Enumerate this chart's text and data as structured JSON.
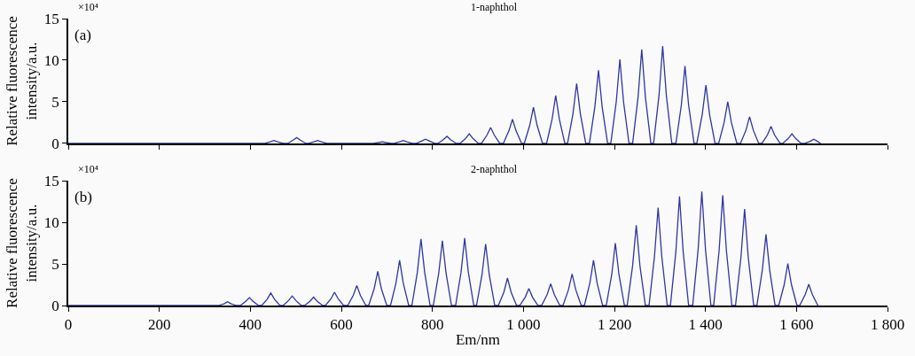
{
  "chart_data": [
    {
      "type": "line",
      "title": "1-naphthol",
      "ylabel": "Relative fluorescence\nintensity/a.u.",
      "annotations": [
        "×10⁴",
        "(a)"
      ],
      "tick_labels": "y",
      "xlim": [
        0,
        1800
      ],
      "xticks": [
        0,
        200,
        400,
        600,
        800,
        1000,
        1200,
        1400,
        1600,
        1800
      ],
      "ylim": [
        0,
        15
      ],
      "yticks": [
        0,
        5,
        10,
        15
      ],
      "series": [
        {
          "color": "#2e36a0",
          "x": [
            0,
            432,
            444,
            452,
            460,
            472,
            482,
            494,
            502,
            510,
            522,
            528,
            540,
            548,
            556,
            568,
            670,
            682,
            690,
            698,
            710,
            716,
            728,
            736,
            744,
            756,
            765,
            777,
            785,
            793,
            805,
            812,
            824,
            832,
            840,
            852,
            861,
            873,
            881,
            889,
            901,
            908,
            920,
            928,
            936,
            948,
            956,
            968,
            976,
            984,
            996,
            1002,
            1014,
            1022,
            1030,
            1042,
            1051,
            1063,
            1071,
            1079,
            1091,
            1097,
            1109,
            1117,
            1125,
            1137,
            1145,
            1157,
            1165,
            1173,
            1185,
            1192,
            1204,
            1212,
            1220,
            1232,
            1240,
            1252,
            1260,
            1268,
            1280,
            1286,
            1298,
            1306,
            1314,
            1326,
            1335,
            1347,
            1355,
            1363,
            1375,
            1381,
            1393,
            1401,
            1409,
            1421,
            1429,
            1441,
            1449,
            1457,
            1469,
            1477,
            1489,
            1497,
            1505,
            1517,
            1524,
            1536,
            1544,
            1552,
            1564,
            1570,
            1582,
            1590,
            1598,
            1610,
            1618,
            1630,
            1638,
            1646,
            1653
          ],
          "values": [
            0,
            0,
            0.2,
            0.35,
            0.2,
            0,
            0,
            0.4,
            0.7,
            0.4,
            0,
            0,
            0.2,
            0.35,
            0.2,
            0,
            0,
            0.1,
            0.2,
            0.1,
            0,
            0,
            0.2,
            0.35,
            0.2,
            0,
            0,
            0.3,
            0.5,
            0.3,
            0,
            0,
            0.45,
            0.85,
            0.45,
            0,
            0,
            0.6,
            1.15,
            0.6,
            0,
            0,
            1,
            1.9,
            1,
            0,
            0,
            1.5,
            2.9,
            1.5,
            0,
            0,
            2.2,
            4.35,
            2.2,
            0,
            0,
            2.9,
            5.75,
            2.9,
            0,
            0,
            3.6,
            7.2,
            3.6,
            0,
            0,
            4.4,
            8.8,
            4.4,
            0,
            0,
            5,
            10.1,
            5,
            0,
            0,
            5.6,
            11.3,
            5.6,
            0,
            0,
            5.8,
            11.7,
            5.8,
            0,
            0,
            4.6,
            9.3,
            4.6,
            0,
            0,
            3.5,
            7,
            3.5,
            0,
            0,
            2.5,
            5,
            2.5,
            0,
            0,
            1.6,
            3.2,
            1.6,
            0,
            0,
            1,
            2.05,
            1,
            0,
            0,
            0.6,
            1.15,
            0.6,
            0,
            0,
            0.25,
            0.5,
            0.25,
            0
          ]
        }
      ]
    },
    {
      "type": "line",
      "title": "2-naphthol",
      "xlabel": "Em/nm",
      "ylabel": "Relative fluorescence\nintensity/a.u.",
      "annotations": [
        "×10⁴",
        "(b)"
      ],
      "xlim": [
        0,
        1800
      ],
      "xticks": [
        0,
        200,
        400,
        600,
        800,
        {
          "value": 1000,
          "label": "1 000"
        },
        {
          "value": 1200,
          "label": "1 200"
        },
        {
          "value": 1400,
          "label": "1 400"
        },
        {
          "value": 1600,
          "label": "1 600"
        },
        {
          "value": 1800,
          "label": "1 800"
        }
      ],
      "ylim": [
        0,
        15
      ],
      "yticks": [
        0,
        5,
        10,
        15
      ],
      "series": [
        {
          "color": "#2e36a0",
          "x": [
            0,
            330,
            342,
            350,
            358,
            370,
            378,
            390,
            398,
            406,
            418,
            425,
            437,
            445,
            453,
            465,
            472,
            484,
            492,
            500,
            512,
            519,
            531,
            539,
            547,
            559,
            565,
            577,
            585,
            593,
            605,
            614,
            626,
            634,
            642,
            654,
            660,
            672,
            680,
            688,
            700,
            708,
            720,
            728,
            736,
            748,
            755,
            767,
            775,
            783,
            795,
            802,
            814,
            822,
            830,
            842,
            851,
            863,
            871,
            879,
            891,
            897,
            909,
            917,
            925,
            937,
            945,
            957,
            965,
            973,
            985,
            992,
            1004,
            1012,
            1020,
            1032,
            1040,
            1052,
            1060,
            1068,
            1080,
            1087,
            1099,
            1107,
            1115,
            1127,
            1134,
            1146,
            1154,
            1162,
            1174,
            1182,
            1194,
            1202,
            1210,
            1222,
            1228,
            1240,
            1248,
            1256,
            1268,
            1276,
            1288,
            1296,
            1304,
            1316,
            1323,
            1335,
            1343,
            1351,
            1363,
            1372,
            1384,
            1392,
            1400,
            1412,
            1418,
            1430,
            1438,
            1446,
            1458,
            1466,
            1478,
            1486,
            1494,
            1506,
            1513,
            1525,
            1533,
            1541,
            1553,
            1561,
            1573,
            1581,
            1589,
            1601,
            1607,
            1619,
            1627,
            1635,
            1647
          ],
          "values": [
            0,
            0,
            0.2,
            0.45,
            0.2,
            0,
            0,
            0.5,
            0.95,
            0.5,
            0,
            0,
            0.75,
            1.5,
            0.75,
            0,
            0,
            0.6,
            1.15,
            0.6,
            0,
            0,
            0.5,
            1,
            0.5,
            0,
            0,
            0.8,
            1.6,
            0.8,
            0,
            0,
            1.2,
            2.4,
            1.2,
            0,
            0,
            2,
            4.1,
            2,
            0,
            0,
            2.7,
            5.45,
            2.7,
            0,
            0,
            4,
            8,
            4,
            0,
            0,
            3.9,
            7.8,
            3.9,
            0,
            0,
            4,
            8.1,
            4,
            0,
            0,
            3.7,
            7.4,
            3.7,
            0,
            0,
            1.6,
            3.3,
            1.6,
            0,
            0,
            1,
            2.05,
            1,
            0,
            0,
            1.3,
            2.6,
            1.3,
            0,
            0,
            1.9,
            3.8,
            1.9,
            0,
            0,
            2.7,
            5.45,
            2.7,
            0,
            0,
            3.7,
            7.5,
            3.7,
            0,
            0,
            4.8,
            9.65,
            4.8,
            0,
            0,
            5.9,
            11.75,
            5.9,
            0,
            0,
            6.5,
            13.1,
            6.5,
            0,
            0,
            6.8,
            13.7,
            6.8,
            0,
            0,
            6.6,
            13.25,
            6.6,
            0,
            0,
            5.8,
            11.6,
            5.8,
            0,
            0,
            4.3,
            8.55,
            4.3,
            0,
            0,
            2.5,
            5.05,
            2.5,
            0,
            0,
            1.3,
            2.55,
            1.3,
            0
          ]
        }
      ]
    }
  ]
}
